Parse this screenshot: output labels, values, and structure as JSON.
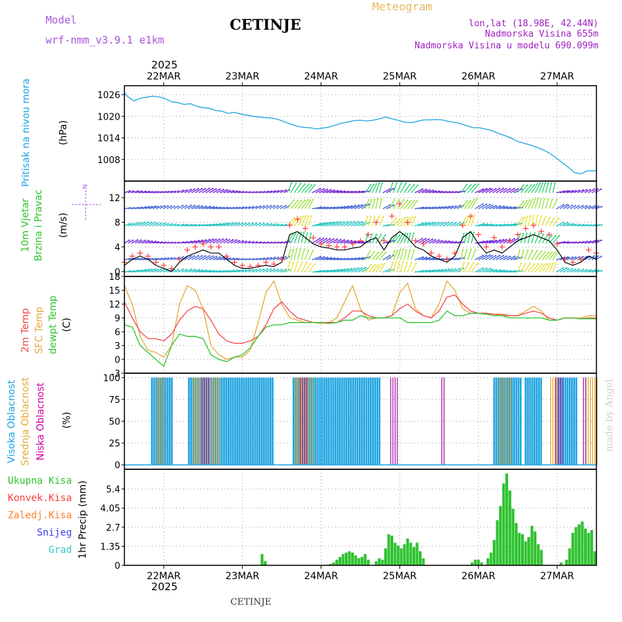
{
  "header": {
    "model_label": "Model",
    "model_name": "wrf-nmm_v3.9.1 e1km",
    "station": "CETINJE",
    "product": "Meteogram",
    "coords": "lon,lat (18.98E, 42.44N)",
    "altitude": "Nadmorska Visina 655m",
    "model_altitude": "Nadmorska Visina u modelu 690.099m",
    "footer_station": "CETINJE",
    "credit": "made by Angel",
    "year": "2025"
  },
  "colors": {
    "pressure": "#1ca3e0",
    "wind_speed": "#000000",
    "gust": "#ff3b3b",
    "t2m": "#f04a4a",
    "sfc": "#e5a93a",
    "dewpt": "#2fc22f",
    "cloud_high": "#1ca3e0",
    "cloud_mid": "#e5a93a",
    "cloud_low": "#a020a0",
    "precip_total": "#2fc22f",
    "precip_conv": "#ff3b3b",
    "precip_frozen": "#ff7f27",
    "snow": "#4040e0",
    "graupel": "#2fc8c8"
  },
  "chart_data": [
    {
      "type": "line",
      "panel": "pressure",
      "ylabel": "Pritisak na nivou mora",
      "unit": "(hPa)",
      "yticks": [
        1008,
        1014,
        1020,
        1026
      ],
      "ylim": [
        1002,
        1028.5
      ],
      "x_days": [
        0,
        0.04,
        0.12,
        0.2,
        0.28,
        0.36,
        0.44,
        0.52,
        0.6,
        0.68,
        0.76,
        0.84,
        0.92,
        1.0,
        1.08,
        1.16,
        1.24,
        1.32,
        1.4,
        1.48,
        1.56,
        1.64,
        1.72,
        1.8,
        1.88,
        1.96,
        2.04,
        2.12,
        2.2,
        2.28,
        2.36,
        2.44,
        2.52,
        2.6,
        2.68,
        2.76,
        2.84,
        2.92,
        3.0,
        3.08,
        3.16,
        3.24,
        3.32,
        3.4,
        3.48,
        3.56,
        3.64,
        3.72,
        3.8,
        3.88,
        3.96,
        4.04,
        4.12,
        4.2,
        4.28,
        4.36,
        4.44,
        4.52,
        4.6,
        4.68,
        4.76,
        4.84,
        4.92,
        5.0,
        5.08,
        5.16,
        5.24,
        5.32,
        5.4,
        5.48,
        5.56,
        5.64,
        5.72,
        5.8,
        5.88,
        5.96,
        6.0
      ],
      "values": [
        1026.5,
        1025.5,
        1024.3,
        1025.0,
        1025.3,
        1025.6,
        1025.4,
        1024.9,
        1024.0,
        1023.8,
        1023.3,
        1023.5,
        1022.8,
        1022.4,
        1022.2,
        1021.6,
        1021.4,
        1020.8,
        1021.1,
        1020.6,
        1020.3,
        1020.0,
        1019.8,
        1019.6,
        1019.5,
        1019.1,
        1018.4,
        1017.8,
        1017.2,
        1016.9,
        1016.8,
        1016.5,
        1016.7,
        1017.0,
        1017.5,
        1018.1,
        1018.4,
        1018.8,
        1018.9,
        1018.7,
        1018.9,
        1019.3,
        1019.8,
        1019.3,
        1018.9,
        1018.4,
        1018.2,
        1018.6,
        1019.0,
        1019.0,
        1019.1,
        1019.0,
        1018.6,
        1018.3,
        1017.9,
        1017.3,
        1016.8,
        1016.8,
        1016.4,
        1016.0,
        1015.2,
        1014.6,
        1013.9,
        1013.0,
        1012.5,
        1012.0,
        1011.4,
        1010.7,
        1009.8,
        1008.6,
        1007.2,
        1005.9,
        1004.4,
        1004.0,
        1004.8,
        1004.8,
        1005.0
      ]
    },
    {
      "type": "line",
      "panel": "wind",
      "ylabel": "10m Vjetar Brzina i Pravac",
      "unit": "(m/s)",
      "compass": "N",
      "yticks": [
        0,
        4,
        8,
        12
      ],
      "ylim": [
        -0.8,
        14.7
      ],
      "x_days": [
        0,
        0.1,
        0.2,
        0.3,
        0.4,
        0.5,
        0.6,
        0.7,
        0.8,
        0.9,
        1.0,
        1.1,
        1.2,
        1.3,
        1.4,
        1.5,
        1.6,
        1.7,
        1.8,
        1.9,
        2.0,
        2.1,
        2.2,
        2.3,
        2.4,
        2.5,
        2.6,
        2.7,
        2.8,
        2.9,
        3.0,
        3.1,
        3.2,
        3.3,
        3.4,
        3.5,
        3.6,
        3.7,
        3.8,
        3.9,
        4.0,
        4.1,
        4.2,
        4.3,
        4.4,
        4.5,
        4.6,
        4.7,
        4.8,
        4.9,
        5.0,
        5.1,
        5.2,
        5.3,
        5.4,
        5.5,
        5.6,
        5.7,
        5.8,
        5.9,
        6.0
      ],
      "speed": [
        1.0,
        2.0,
        2.5,
        2.0,
        1.0,
        0.5,
        0.0,
        1.5,
        2.5,
        3.0,
        3.5,
        3.0,
        3.0,
        2.0,
        1.0,
        0.5,
        0.5,
        0.8,
        1.0,
        0.8,
        1.5,
        6.0,
        6.5,
        5.5,
        4.5,
        4.0,
        3.8,
        3.5,
        3.5,
        3.8,
        4.0,
        5.0,
        5.5,
        3.5,
        5.5,
        6.5,
        5.5,
        4.0,
        3.5,
        2.5,
        2.0,
        1.5,
        2.5,
        5.5,
        6.5,
        4.5,
        3.0,
        3.5,
        3.0,
        4.0,
        5.0,
        5.5,
        6.0,
        5.5,
        5.0,
        3.5,
        1.5,
        1.0,
        1.5,
        2.5,
        2.0
      ],
      "gust": [
        1.5,
        2.5,
        3.0,
        2.5,
        1.5,
        1.0,
        0.5,
        2.0,
        3.5,
        4.0,
        4.5,
        4.0,
        4.0,
        2.5,
        1.5,
        1.0,
        0.8,
        1.0,
        1.5,
        1.2,
        2.0,
        7.5,
        8.5,
        7.0,
        5.5,
        4.5,
        4.2,
        4.0,
        4.0,
        4.5,
        5.0,
        6.0,
        8.0,
        5.0,
        9.0,
        11.0,
        8.0,
        5.0,
        4.5,
        3.0,
        2.5,
        2.0,
        3.0,
        7.5,
        9.0,
        6.0,
        4.0,
        5.5,
        4.0,
        5.0,
        6.0,
        7.0,
        7.5,
        6.5,
        6.0,
        4.5,
        2.0,
        1.5,
        2.0,
        3.5,
        3.0
      ]
    },
    {
      "type": "line",
      "panel": "temperature",
      "ylabel": [
        "2m Temp",
        "SFC Temp",
        "dewpt Temp"
      ],
      "unit": "(C)",
      "yticks": [
        -3,
        0,
        3,
        6,
        9,
        12,
        15,
        18
      ],
      "ylim": [
        -3,
        18
      ],
      "x_days": [
        0,
        0.1,
        0.2,
        0.3,
        0.4,
        0.5,
        0.6,
        0.7,
        0.8,
        0.9,
        1.0,
        1.1,
        1.2,
        1.3,
        1.4,
        1.5,
        1.6,
        1.7,
        1.8,
        1.9,
        2.0,
        2.1,
        2.2,
        2.3,
        2.4,
        2.5,
        2.6,
        2.7,
        2.8,
        2.9,
        3.0,
        3.1,
        3.2,
        3.3,
        3.4,
        3.5,
        3.6,
        3.7,
        3.8,
        3.9,
        4.0,
        4.1,
        4.2,
        4.3,
        4.4,
        4.5,
        4.6,
        4.7,
        4.8,
        4.9,
        5.0,
        5.1,
        5.2,
        5.3,
        5.4,
        5.5,
        5.6,
        5.7,
        5.8,
        5.9,
        6.0
      ],
      "series": [
        {
          "name": "2m Temp",
          "values": [
            12.5,
            9.0,
            6.0,
            4.5,
            4.5,
            4.0,
            5.5,
            8.5,
            10.5,
            11.5,
            11.0,
            8.5,
            5.5,
            4.0,
            3.5,
            3.5,
            4.0,
            5.0,
            7.5,
            11.0,
            12.5,
            10.5,
            9.0,
            8.5,
            8.0,
            8.0,
            8.0,
            8.0,
            9.0,
            10.5,
            10.5,
            9.5,
            9.0,
            9.0,
            9.5,
            11.0,
            12.0,
            10.5,
            9.5,
            9.0,
            10.5,
            13.5,
            14.0,
            12.0,
            10.5,
            10.0,
            10.0,
            9.8,
            9.8,
            9.5,
            9.5,
            10.0,
            10.5,
            10.0,
            9.0,
            8.5,
            9.0,
            9.0,
            8.8,
            9.0,
            9.0
          ]
        },
        {
          "name": "SFC Temp",
          "values": [
            16.0,
            12.0,
            5.0,
            2.0,
            1.5,
            0.5,
            3.0,
            12.0,
            16.0,
            15.0,
            11.0,
            3.0,
            1.0,
            0.0,
            0.5,
            0.5,
            2.0,
            8.0,
            14.5,
            17.0,
            12.0,
            9.0,
            8.5,
            8.0,
            8.0,
            7.8,
            8.0,
            9.0,
            12.5,
            16.0,
            11.0,
            8.5,
            9.0,
            9.0,
            9.5,
            14.5,
            16.5,
            11.0,
            9.5,
            9.0,
            12.0,
            17.0,
            15.0,
            11.0,
            10.0,
            10.0,
            10.0,
            9.8,
            9.5,
            9.5,
            9.5,
            10.5,
            11.5,
            10.5,
            8.5,
            8.5,
            9.0,
            9.0,
            9.0,
            9.5,
            9.5
          ]
        },
        {
          "name": "dewpt Temp",
          "values": [
            7.5,
            7.0,
            3.0,
            1.5,
            0.0,
            -1.5,
            3.0,
            5.5,
            5.0,
            5.0,
            4.5,
            1.0,
            0.0,
            -0.5,
            0.5,
            1.0,
            2.5,
            5.0,
            7.0,
            7.5,
            7.5,
            8.0,
            8.0,
            8.0,
            8.0,
            8.0,
            7.8,
            8.0,
            8.5,
            8.5,
            9.5,
            9.0,
            9.0,
            9.0,
            9.0,
            9.0,
            8.0,
            8.0,
            8.0,
            8.0,
            8.5,
            10.5,
            9.5,
            9.5,
            10.0,
            10.0,
            9.8,
            9.5,
            9.5,
            9.0,
            9.0,
            9.0,
            9.0,
            9.0,
            8.5,
            8.5,
            9.0,
            9.0,
            8.8,
            8.8,
            8.8
          ]
        }
      ]
    },
    {
      "type": "bar",
      "panel": "cloud",
      "ylabel": [
        "Visoka Oblacnost",
        "Srednja Oblacnost",
        "Niska Oblacnost"
      ],
      "unit": "(%)",
      "yticks": [
        0,
        25,
        50,
        75,
        100
      ],
      "ylim": [
        -5,
        105
      ],
      "series": [
        {
          "name": "Visoka Oblacnost",
          "segments": [
            [
              0.35,
              0.62
            ],
            [
              0.82,
              1.9
            ],
            [
              2.15,
              3.25
            ],
            [
              4.7,
              5.05
            ],
            [
              5.1,
              5.3
            ],
            [
              5.52,
              5.75
            ]
          ]
        },
        {
          "name": "Srednja Oblacnost",
          "segments": [
            [
              0.4,
              0.5
            ],
            [
              0.85,
              1.2
            ],
            [
              2.15,
              2.4
            ],
            [
              4.75,
              4.9
            ],
            [
              5.4,
              5.5
            ],
            [
              5.85,
              6.0
            ]
          ]
        },
        {
          "name": "Niska Oblacnost",
          "segments": [
            [
              0.95,
              1.05
            ],
            [
              2.2,
              2.3
            ],
            [
              3.35,
              3.45
            ],
            [
              4.0,
              4.05
            ],
            [
              5.45,
              5.55
            ],
            [
              5.8,
              5.85
            ]
          ]
        }
      ]
    },
    {
      "type": "bar",
      "panel": "precip",
      "ylabel": "1hr Precip (mm)",
      "legend": [
        "Ukupna Kisa",
        "Konvek.Kisa",
        "Zaledj.Kisa",
        "Snijeg",
        "Grad"
      ],
      "yticks": [
        0,
        1.35,
        2.7,
        4.05,
        5.4
      ],
      "ylim": [
        0,
        6.8
      ],
      "bars": [
        {
          "x": 1.75,
          "v": 0.8
        },
        {
          "x": 1.79,
          "v": 0.3
        },
        {
          "x": 2.62,
          "v": 0.1
        },
        {
          "x": 2.66,
          "v": 0.2
        },
        {
          "x": 2.7,
          "v": 0.4
        },
        {
          "x": 2.74,
          "v": 0.6
        },
        {
          "x": 2.78,
          "v": 0.8
        },
        {
          "x": 2.82,
          "v": 0.9
        },
        {
          "x": 2.86,
          "v": 1.0
        },
        {
          "x": 2.9,
          "v": 0.9
        },
        {
          "x": 2.94,
          "v": 0.7
        },
        {
          "x": 2.98,
          "v": 0.5
        },
        {
          "x": 3.02,
          "v": 0.6
        },
        {
          "x": 3.06,
          "v": 0.8
        },
        {
          "x": 3.1,
          "v": 0.4
        },
        {
          "x": 3.2,
          "v": 0.3
        },
        {
          "x": 3.24,
          "v": 0.5
        },
        {
          "x": 3.28,
          "v": 0.4
        },
        {
          "x": 3.32,
          "v": 1.2
        },
        {
          "x": 3.36,
          "v": 2.2
        },
        {
          "x": 3.4,
          "v": 2.1
        },
        {
          "x": 3.44,
          "v": 1.6
        },
        {
          "x": 3.48,
          "v": 1.4
        },
        {
          "x": 3.52,
          "v": 1.2
        },
        {
          "x": 3.56,
          "v": 1.5
        },
        {
          "x": 3.6,
          "v": 1.9
        },
        {
          "x": 3.64,
          "v": 1.6
        },
        {
          "x": 3.68,
          "v": 1.3
        },
        {
          "x": 3.72,
          "v": 1.6
        },
        {
          "x": 3.76,
          "v": 1.0
        },
        {
          "x": 3.8,
          "v": 0.5
        },
        {
          "x": 4.42,
          "v": 0.2
        },
        {
          "x": 4.46,
          "v": 0.4
        },
        {
          "x": 4.5,
          "v": 0.4
        },
        {
          "x": 4.54,
          "v": 0.2
        },
        {
          "x": 4.62,
          "v": 0.5
        },
        {
          "x": 4.66,
          "v": 0.9
        },
        {
          "x": 4.7,
          "v": 1.8
        },
        {
          "x": 4.74,
          "v": 3.2
        },
        {
          "x": 4.78,
          "v": 4.2
        },
        {
          "x": 4.82,
          "v": 5.8
        },
        {
          "x": 4.86,
          "v": 6.5
        },
        {
          "x": 4.9,
          "v": 5.3
        },
        {
          "x": 4.94,
          "v": 4.0
        },
        {
          "x": 4.98,
          "v": 3.0
        },
        {
          "x": 5.02,
          "v": 2.3
        },
        {
          "x": 5.06,
          "v": 2.2
        },
        {
          "x": 5.1,
          "v": 1.7
        },
        {
          "x": 5.14,
          "v": 2.0
        },
        {
          "x": 5.18,
          "v": 2.8
        },
        {
          "x": 5.22,
          "v": 2.4
        },
        {
          "x": 5.26,
          "v": 1.5
        },
        {
          "x": 5.3,
          "v": 1.1
        },
        {
          "x": 5.55,
          "v": 0.2
        },
        {
          "x": 5.62,
          "v": 0.4
        },
        {
          "x": 5.66,
          "v": 1.2
        },
        {
          "x": 5.7,
          "v": 2.3
        },
        {
          "x": 5.74,
          "v": 2.7
        },
        {
          "x": 5.78,
          "v": 2.9
        },
        {
          "x": 5.82,
          "v": 3.1
        },
        {
          "x": 5.86,
          "v": 2.6
        },
        {
          "x": 5.9,
          "v": 2.3
        },
        {
          "x": 5.94,
          "v": 2.5
        },
        {
          "x": 5.98,
          "v": 1.0
        }
      ]
    }
  ],
  "x_axis": {
    "days": [
      "22MAR",
      "23MAR",
      "24MAR",
      "25MAR",
      "26MAR",
      "27MAR"
    ],
    "start_offset_days": 0.5,
    "span_days": 6
  }
}
